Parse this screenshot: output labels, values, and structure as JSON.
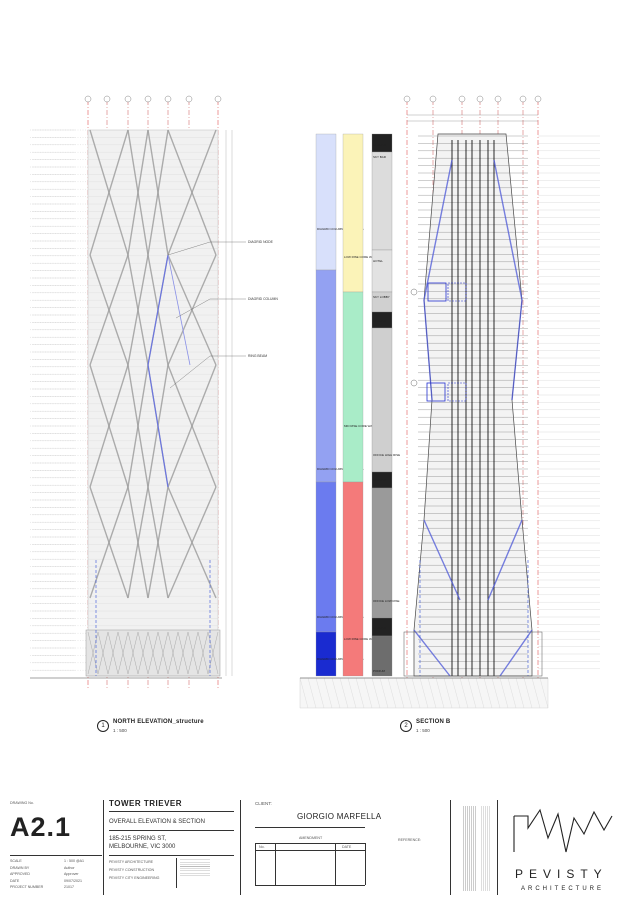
{
  "views": [
    {
      "number": "1",
      "title": "NORTH ELEVATION_structure",
      "scale": "1 : 500"
    },
    {
      "number": "2",
      "title": "SECTION B",
      "scale": "1 : 500"
    }
  ],
  "elevation_notes": [
    "DIAGRID NODE",
    "DIAGRID COLUMN",
    "RING BEAM"
  ],
  "section_zones": {
    "diagrid": [
      "DIAGRID COLUMNS 2490MM DIA",
      "DIAGRID COLUMNS 3110MM DIA",
      "DIAGRID COLUMNS 3730MM DIA",
      "DIAGRID COLUMNS 4470MM DIA"
    ],
    "core": [
      "LOW RISE CORE WALLS",
      "MID RISE CORE WALLS",
      "LOW RISE CORE WALLS"
    ],
    "function": [
      "MECHAN",
      "SKY BAR",
      "HOTEL",
      "SKY LOBBY",
      "MECHAN",
      "OFFICE HIGH RISE",
      "MECHAN",
      "OFFICE LOW RISE",
      "MECHAN",
      "PODIUM"
    ]
  },
  "title_block": {
    "drawing_no_label": "DRAWING No.",
    "drawing_no": "A2.1",
    "project": "TOWER TRIEVER",
    "subtitle": "OVERALL ELEVATION & SECTION",
    "address_line1": "185-215 SPRING ST,",
    "address_line2": "MELBOURNE, VIC 3000",
    "consultants": [
      "PEVISTY ARCHITECTURE",
      "PEVISTY CONSTRUCTION",
      "PEVISTY CITY ENGINEERING"
    ],
    "meta": [
      {
        "label": "SCALE",
        "value": "1 : 500 @A1"
      },
      {
        "label": "DRAWN BY",
        "value": "Author"
      },
      {
        "label": "APPROVED",
        "value": "Approver"
      },
      {
        "label": "DATE",
        "value": "09/07/2021"
      },
      {
        "label": "PROJECT NUMBER",
        "value": "21017"
      }
    ],
    "client_label": "CLIENT:",
    "client": "GIORGIO MARFELLA",
    "amendment_label": "AMENDMENT",
    "no_label": "No.",
    "date_label": "DATE",
    "reference_label": "REFERENCE:"
  },
  "logo": {
    "word": "PEVISTY",
    "sub": "ARCHITECTURE"
  }
}
